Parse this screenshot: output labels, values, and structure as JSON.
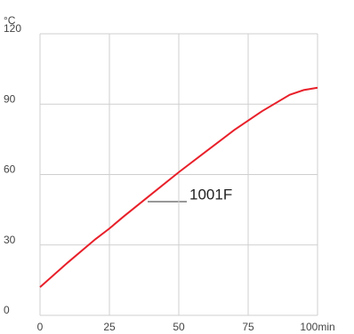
{
  "chart_data": {
    "type": "line",
    "y_label": "°C",
    "x": [
      0,
      10,
      20,
      25,
      30,
      40,
      50,
      60,
      70,
      80,
      90,
      95,
      100
    ],
    "series": [
      {
        "name": "1001F",
        "color": "#e8202a",
        "values": [
          12,
          22.5,
          32.5,
          37,
          42,
          51.5,
          61,
          70,
          79,
          87,
          94,
          96,
          97
        ]
      }
    ],
    "xlim": [
      0,
      100
    ],
    "xticks": [
      0,
      25,
      50,
      75,
      {
        "value": 100,
        "label": "100min"
      }
    ],
    "ylim": [
      0,
      120
    ],
    "yticks": [
      0,
      30,
      60,
      90,
      120
    ],
    "grid": true
  }
}
